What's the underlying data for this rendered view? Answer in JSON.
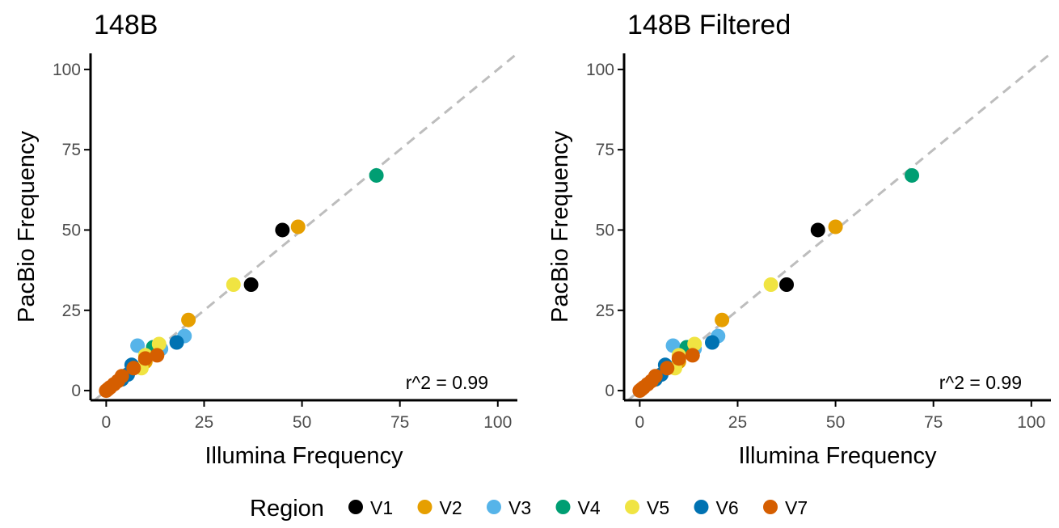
{
  "chart_data": [
    {
      "type": "scatter",
      "title": "148B",
      "xlabel": "Illumina Frequency",
      "ylabel": "PacBio Frequency",
      "xlim": [
        -4,
        105
      ],
      "ylim": [
        -3,
        105
      ],
      "xticks": [
        0,
        25,
        50,
        75,
        100
      ],
      "yticks": [
        0,
        25,
        50,
        75,
        100
      ],
      "xtick_labels": [
        "0",
        "25",
        "50",
        "75",
        "100"
      ],
      "ytick_labels": [
        "0",
        "25",
        "50",
        "75",
        "100"
      ],
      "reference_line": "y = x (dashed grey)",
      "annotation": "r^2 = 0.99",
      "grid": false,
      "points": [
        {
          "region": "V1",
          "x": 45,
          "y": 50
        },
        {
          "region": "V1",
          "x": 37,
          "y": 33
        },
        {
          "region": "V2",
          "x": 49,
          "y": 51
        },
        {
          "region": "V2",
          "x": 21,
          "y": 22
        },
        {
          "region": "V2",
          "x": 10,
          "y": 9
        },
        {
          "region": "V3",
          "x": 8,
          "y": 14
        },
        {
          "region": "V3",
          "x": 20,
          "y": 17
        },
        {
          "region": "V3",
          "x": 14,
          "y": 13
        },
        {
          "region": "V4",
          "x": 69,
          "y": 67
        },
        {
          "region": "V4",
          "x": 12,
          "y": 13.5
        },
        {
          "region": "V5",
          "x": 32.5,
          "y": 33
        },
        {
          "region": "V5",
          "x": 13.5,
          "y": 14.5
        },
        {
          "region": "V5",
          "x": 10,
          "y": 11
        },
        {
          "region": "V5",
          "x": 9,
          "y": 7
        },
        {
          "region": "V6",
          "x": 18,
          "y": 15
        },
        {
          "region": "V6",
          "x": 6.5,
          "y": 8
        },
        {
          "region": "V6",
          "x": 5.5,
          "y": 5
        },
        {
          "region": "V6",
          "x": 4,
          "y": 3.5
        },
        {
          "region": "V7",
          "x": 13,
          "y": 11
        },
        {
          "region": "V7",
          "x": 10,
          "y": 10
        },
        {
          "region": "V7",
          "x": 7,
          "y": 7
        },
        {
          "region": "V7",
          "x": 4,
          "y": 4.5
        },
        {
          "region": "V7",
          "x": 3,
          "y": 3
        },
        {
          "region": "V7",
          "x": 2,
          "y": 2
        },
        {
          "region": "V7",
          "x": 1,
          "y": 1
        },
        {
          "region": "V7",
          "x": 0.5,
          "y": 0.5
        },
        {
          "region": "V7",
          "x": 0,
          "y": 0
        }
      ]
    },
    {
      "type": "scatter",
      "title": "148B Filtered",
      "xlabel": "Illumina Frequency",
      "ylabel": "PacBio Frequency",
      "xlim": [
        -4,
        105
      ],
      "ylim": [
        -3,
        105
      ],
      "xticks": [
        0,
        25,
        50,
        75,
        100
      ],
      "yticks": [
        0,
        25,
        50,
        75,
        100
      ],
      "xtick_labels": [
        "0",
        "25",
        "50",
        "75",
        "100"
      ],
      "ytick_labels": [
        "0",
        "25",
        "50",
        "75",
        "100"
      ],
      "reference_line": "y = x (dashed grey)",
      "annotation": "r^2 = 0.99",
      "grid": false,
      "points": [
        {
          "region": "V1",
          "x": 45.5,
          "y": 50
        },
        {
          "region": "V1",
          "x": 37.5,
          "y": 33
        },
        {
          "region": "V2",
          "x": 50,
          "y": 51
        },
        {
          "region": "V2",
          "x": 21,
          "y": 22
        },
        {
          "region": "V2",
          "x": 10,
          "y": 9
        },
        {
          "region": "V3",
          "x": 8.5,
          "y": 14
        },
        {
          "region": "V3",
          "x": 20,
          "y": 17
        },
        {
          "region": "V3",
          "x": 14,
          "y": 13
        },
        {
          "region": "V4",
          "x": 69.5,
          "y": 67
        },
        {
          "region": "V4",
          "x": 12,
          "y": 13.5
        },
        {
          "region": "V5",
          "x": 33.5,
          "y": 33
        },
        {
          "region": "V5",
          "x": 14,
          "y": 14.5
        },
        {
          "region": "V5",
          "x": 10,
          "y": 11
        },
        {
          "region": "V5",
          "x": 9,
          "y": 7
        },
        {
          "region": "V6",
          "x": 18.5,
          "y": 15
        },
        {
          "region": "V6",
          "x": 6.5,
          "y": 8
        },
        {
          "region": "V6",
          "x": 5.5,
          "y": 5
        },
        {
          "region": "V6",
          "x": 4,
          "y": 3.5
        },
        {
          "region": "V7",
          "x": 13.5,
          "y": 11
        },
        {
          "region": "V7",
          "x": 10,
          "y": 10
        },
        {
          "region": "V7",
          "x": 7,
          "y": 7
        },
        {
          "region": "V7",
          "x": 4,
          "y": 4.5
        },
        {
          "region": "V7",
          "x": 3,
          "y": 3
        },
        {
          "region": "V7",
          "x": 2,
          "y": 2
        },
        {
          "region": "V7",
          "x": 1,
          "y": 1
        },
        {
          "region": "V7",
          "x": 0.5,
          "y": 0.5
        },
        {
          "region": "V7",
          "x": 0,
          "y": 0
        }
      ]
    }
  ],
  "legend": {
    "title": "Region",
    "placement": "bottom",
    "items": [
      {
        "label": "V1",
        "color": "#000000"
      },
      {
        "label": "V2",
        "color": "#E69F00"
      },
      {
        "label": "V3",
        "color": "#56B4E9"
      },
      {
        "label": "V4",
        "color": "#009E73"
      },
      {
        "label": "V5",
        "color": "#F0E442"
      },
      {
        "label": "V6",
        "color": "#0072B2"
      },
      {
        "label": "V7",
        "color": "#D55E00"
      }
    ]
  },
  "colors": {
    "reference_line": "#bdbdbd",
    "axis": "#000000",
    "tick_label": "#4d4d4d"
  }
}
